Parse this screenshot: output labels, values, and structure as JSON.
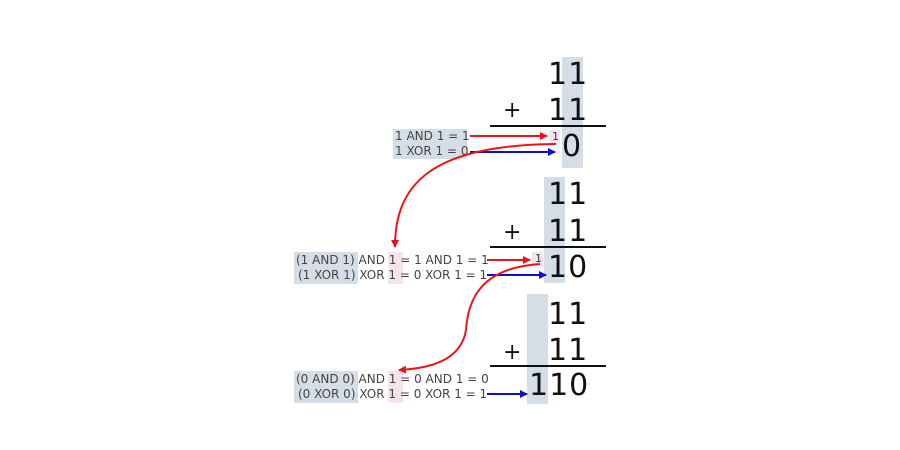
{
  "blocks": [
    {
      "top": "11",
      "bottom": "11",
      "operator": "+",
      "carry": "1",
      "result": "0",
      "and_label": "1 AND 1 = 1",
      "xor_label": "1 XOR 1 = 0"
    },
    {
      "top": "11",
      "bottom": "11",
      "operator": "+",
      "carry": "1",
      "result": "10",
      "and_label": {
        "a": "(1 AND 1)",
        "b": " AND ",
        "c": "1",
        "d": " = 1 AND 1 = 1"
      },
      "xor_label": {
        "a": "(1 XOR 1)",
        "b": " XOR ",
        "c": "1",
        "d": " = 0 XOR 1 = 1"
      }
    },
    {
      "top": "11",
      "bottom": "11",
      "operator": "+",
      "result": "110",
      "and_label": {
        "a": "(0 AND 0)",
        "b": " AND ",
        "c": "1",
        "d": " = 0 AND 1 = 0"
      },
      "xor_label": {
        "a": "(0 XOR 0)",
        "b": " XOR ",
        "c": "1",
        "d": " = 0 XOR 1 = 1"
      }
    }
  ],
  "colors": {
    "and_arrow": "#e8141c",
    "xor_arrow": "#1010cc",
    "carry_arrow": "#e8141c",
    "column_highlight": "#d5dde6",
    "carry_highlight": "#f6e4ec"
  }
}
